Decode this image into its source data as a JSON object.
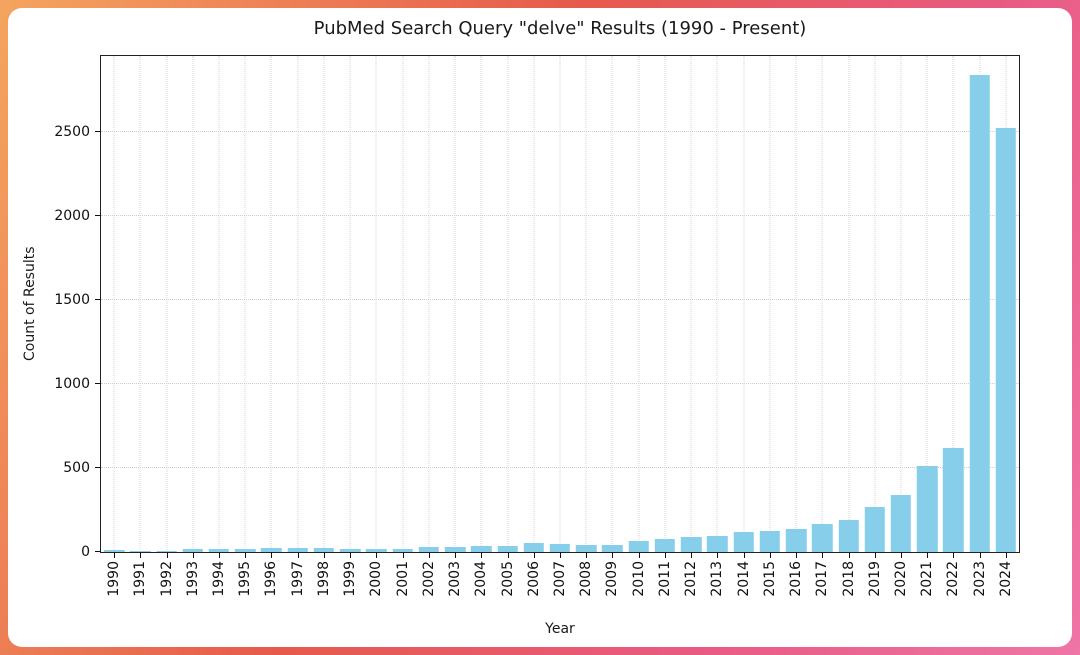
{
  "page": {
    "background_gradient": [
      "#f4a55f",
      "#e65a4c",
      "#e85a82",
      "#ef75a6"
    ],
    "card_background": "#ffffff"
  },
  "chart_data": {
    "type": "bar",
    "title": "PubMed Search Query \"delve\" Results (1990 - Present)",
    "xlabel": "Year",
    "ylabel": "Count of Results",
    "categories": [
      "1990",
      "1991",
      "1992",
      "1993",
      "1994",
      "1995",
      "1996",
      "1997",
      "1998",
      "1999",
      "2000",
      "2001",
      "2002",
      "2003",
      "2004",
      "2005",
      "2006",
      "2007",
      "2008",
      "2009",
      "2010",
      "2011",
      "2012",
      "2013",
      "2014",
      "2015",
      "2016",
      "2017",
      "2018",
      "2019",
      "2020",
      "2021",
      "2022",
      "2023",
      "2024"
    ],
    "values": [
      10,
      9,
      9,
      15,
      15,
      15,
      21,
      21,
      24,
      18,
      18,
      18,
      27,
      27,
      33,
      35,
      53,
      47,
      44,
      41,
      65,
      77,
      89,
      95,
      118,
      125,
      136,
      165,
      190,
      265,
      340,
      510,
      620,
      2840,
      2520
    ],
    "ylim": [
      0,
      2950
    ],
    "yticks": [
      0,
      500,
      1000,
      1500,
      2000,
      2500
    ],
    "bar_color": "#87CEEB",
    "grid": "dotted",
    "legend": "none",
    "x_tick_rotation": 90
  }
}
